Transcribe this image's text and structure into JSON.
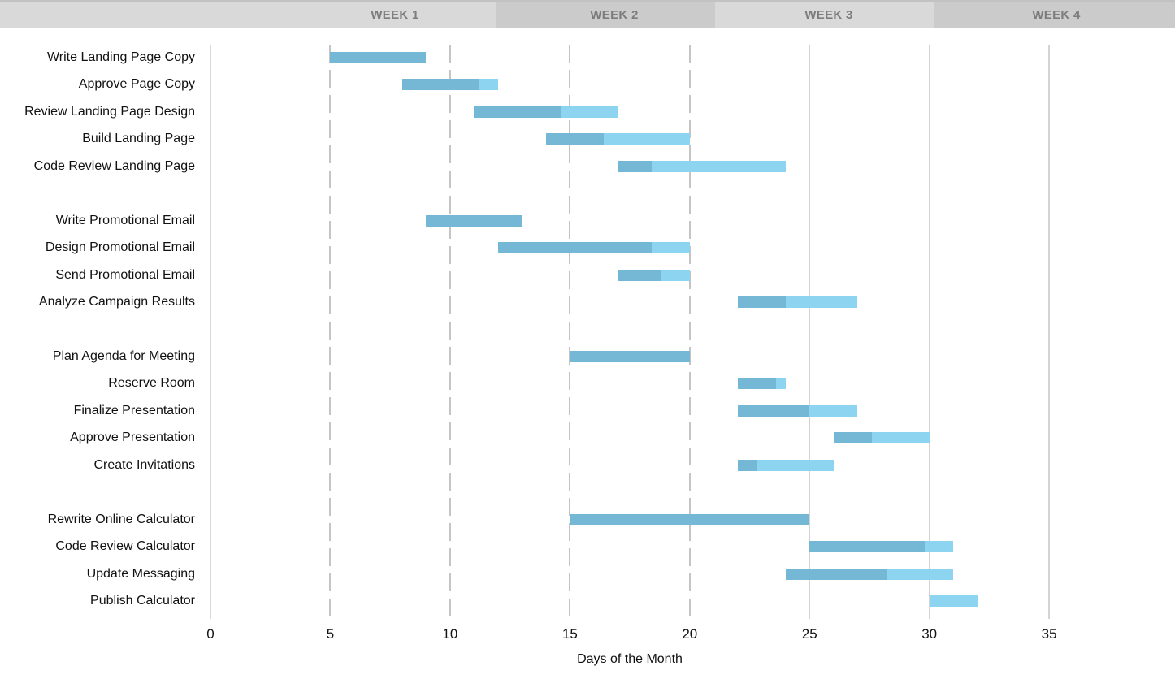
{
  "header": {
    "weeks": [
      {
        "label": "WEEK 1"
      },
      {
        "label": "WEEK 2"
      },
      {
        "label": "WEEK 3"
      },
      {
        "label": "WEEK 4"
      }
    ]
  },
  "colors": {
    "bar_complete": "#75b8d5",
    "bar_remaining": "#8dd4f1",
    "header_light": "#d9d9d9",
    "header_dark": "#cbcbcb",
    "header_text": "#7d7d7d",
    "gridline_dashed": "#c4c4c4",
    "gridline_solid": "#d4d4d4"
  },
  "chart_data": {
    "type": "bar",
    "subtype": "gantt",
    "title": "",
    "xlabel": "Days of the Month",
    "ylabel": "",
    "xlim": [
      0,
      38.5
    ],
    "x_ticks": [
      0,
      5,
      10,
      15,
      20,
      25,
      30,
      35
    ],
    "dashed_gridline_days": [
      5,
      10,
      15,
      20
    ],
    "solid_gridline_days": [
      0,
      25,
      30,
      35
    ],
    "legend": null,
    "grid": "vertical-only",
    "tasks": [
      {
        "name": "Write Landing Page Copy",
        "group": 1,
        "start_day": 5,
        "end_day": 9,
        "percent_complete": 100
      },
      {
        "name": "Approve Page Copy",
        "group": 1,
        "start_day": 8,
        "end_day": 12,
        "percent_complete": 80
      },
      {
        "name": "Review Landing Page Design",
        "group": 1,
        "start_day": 11,
        "end_day": 17,
        "percent_complete": 60
      },
      {
        "name": "Build Landing Page",
        "group": 1,
        "start_day": 14,
        "end_day": 20,
        "percent_complete": 40
      },
      {
        "name": "Code Review Landing Page",
        "group": 1,
        "start_day": 17,
        "end_day": 24,
        "percent_complete": 20
      },
      {
        "name": "Write Promotional Email",
        "group": 2,
        "start_day": 9,
        "end_day": 13,
        "percent_complete": 100
      },
      {
        "name": "Design Promotional Email",
        "group": 2,
        "start_day": 12,
        "end_day": 20,
        "percent_complete": 80
      },
      {
        "name": "Send Promotional Email",
        "group": 2,
        "start_day": 17,
        "end_day": 20,
        "percent_complete": 60
      },
      {
        "name": "Analyze Campaign Results",
        "group": 2,
        "start_day": 22,
        "end_day": 27,
        "percent_complete": 40
      },
      {
        "name": "Plan Agenda for Meeting",
        "group": 3,
        "start_day": 15,
        "end_day": 20,
        "percent_complete": 100
      },
      {
        "name": "Reserve Room",
        "group": 3,
        "start_day": 22,
        "end_day": 24,
        "percent_complete": 80
      },
      {
        "name": "Finalize Presentation",
        "group": 3,
        "start_day": 22,
        "end_day": 27,
        "percent_complete": 60
      },
      {
        "name": "Approve Presentation",
        "group": 3,
        "start_day": 26,
        "end_day": 30,
        "percent_complete": 40
      },
      {
        "name": "Create Invitations",
        "group": 3,
        "start_day": 22,
        "end_day": 26,
        "percent_complete": 20
      },
      {
        "name": "Rewrite Online Calculator",
        "group": 4,
        "start_day": 15,
        "end_day": 25,
        "percent_complete": 100
      },
      {
        "name": "Code Review Calculator",
        "group": 4,
        "start_day": 25,
        "end_day": 31,
        "percent_complete": 80
      },
      {
        "name": "Update Messaging",
        "group": 4,
        "start_day": 24,
        "end_day": 31,
        "percent_complete": 60
      },
      {
        "name": "Publish Calculator",
        "group": 4,
        "start_day": 30,
        "end_day": 32,
        "percent_complete": 0
      }
    ]
  }
}
